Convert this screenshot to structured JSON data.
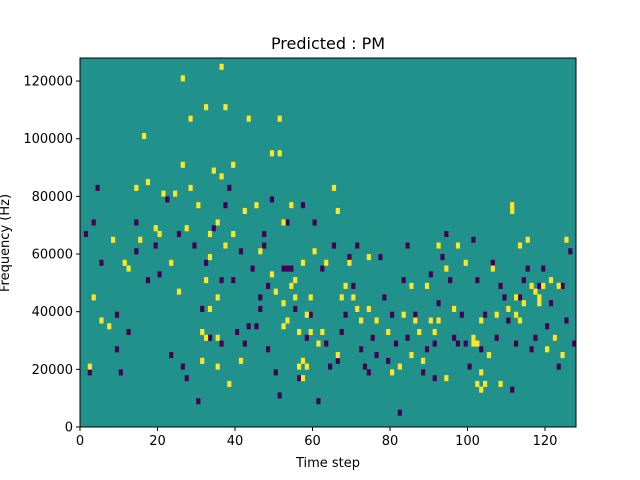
{
  "chart_data": {
    "type": "heatmap",
    "title": "Predicted : PM",
    "xlabel": "Time step",
    "ylabel": "Frequency (Hz)",
    "xlim": [
      0,
      128
    ],
    "ylim": [
      0,
      128000
    ],
    "xticks": [
      0,
      20,
      40,
      60,
      80,
      100,
      120
    ],
    "yticks": [
      0,
      20000,
      40000,
      60000,
      80000,
      100000,
      120000
    ],
    "colors": {
      "background": "#21918c",
      "low": "#440154",
      "high": "#fde725"
    },
    "values_note_legend": [],
    "high_cells": [
      [
        2,
        10
      ],
      [
        3,
        22
      ],
      [
        5,
        18
      ],
      [
        7,
        17
      ],
      [
        8,
        32
      ],
      [
        11,
        28
      ],
      [
        12,
        27
      ],
      [
        14,
        41
      ],
      [
        15,
        32
      ],
      [
        16,
        50
      ],
      [
        17,
        42
      ],
      [
        19,
        34
      ],
      [
        20,
        33
      ],
      [
        21,
        40
      ],
      [
        23,
        28
      ],
      [
        24,
        40
      ],
      [
        25,
        23
      ],
      [
        26,
        45
      ],
      [
        26,
        60
      ],
      [
        27,
        34
      ],
      [
        28,
        41
      ],
      [
        28,
        53
      ],
      [
        30,
        38
      ],
      [
        31,
        11
      ],
      [
        31,
        16
      ],
      [
        32,
        15
      ],
      [
        32,
        25
      ],
      [
        32,
        55
      ],
      [
        33,
        20
      ],
      [
        33,
        29
      ],
      [
        33,
        33
      ],
      [
        34,
        44
      ],
      [
        35,
        10
      ],
      [
        35,
        15
      ],
      [
        35,
        22
      ],
      [
        35,
        35
      ],
      [
        36,
        43
      ],
      [
        36,
        62
      ],
      [
        37,
        31
      ],
      [
        37,
        55
      ],
      [
        38,
        7
      ],
      [
        39,
        33
      ],
      [
        39,
        45
      ],
      [
        41,
        11
      ],
      [
        42,
        37
      ],
      [
        43,
        53
      ],
      [
        45,
        38
      ],
      [
        46,
        30
      ],
      [
        49,
        26
      ],
      [
        49,
        47
      ],
      [
        50,
        23
      ],
      [
        51,
        47
      ],
      [
        51,
        53
      ],
      [
        52,
        17
      ],
      [
        52,
        21
      ],
      [
        52,
        35
      ],
      [
        53,
        18
      ],
      [
        54,
        24
      ],
      [
        54,
        38
      ],
      [
        55,
        22
      ],
      [
        55,
        25
      ],
      [
        56,
        10
      ],
      [
        56,
        16
      ],
      [
        57,
        8
      ],
      [
        57,
        11
      ],
      [
        57,
        28
      ],
      [
        58,
        10
      ],
      [
        58,
        19
      ],
      [
        59,
        16
      ],
      [
        59,
        22
      ],
      [
        60,
        30
      ],
      [
        61,
        14
      ],
      [
        62,
        16
      ],
      [
        63,
        28
      ],
      [
        65,
        41
      ],
      [
        66,
        12
      ],
      [
        66,
        37
      ],
      [
        67,
        22
      ],
      [
        68,
        24
      ],
      [
        69,
        28
      ],
      [
        70,
        22
      ],
      [
        71,
        20
      ],
      [
        72,
        18
      ],
      [
        74,
        20
      ],
      [
        74,
        29
      ],
      [
        76,
        18
      ],
      [
        79,
        16
      ],
      [
        80,
        9
      ],
      [
        82,
        10
      ],
      [
        83,
        19
      ],
      [
        85,
        12
      ],
      [
        85,
        24
      ],
      [
        86,
        18
      ],
      [
        87,
        16
      ],
      [
        88,
        11
      ],
      [
        89,
        24
      ],
      [
        90,
        18
      ],
      [
        91,
        16
      ],
      [
        92,
        18
      ],
      [
        92,
        31
      ],
      [
        94,
        8
      ],
      [
        94,
        27
      ],
      [
        96,
        20
      ],
      [
        97,
        31
      ],
      [
        99,
        28
      ],
      [
        101,
        14
      ],
      [
        101,
        15
      ],
      [
        102,
        7
      ],
      [
        102,
        14
      ],
      [
        103,
        6
      ],
      [
        103,
        9
      ],
      [
        103,
        18
      ],
      [
        104,
        7
      ],
      [
        105,
        12
      ],
      [
        106,
        27
      ],
      [
        107,
        19
      ],
      [
        108,
        7
      ],
      [
        110,
        20
      ],
      [
        111,
        37
      ],
      [
        111,
        38
      ],
      [
        112,
        19
      ],
      [
        112,
        22
      ],
      [
        113,
        18
      ],
      [
        113,
        31
      ],
      [
        114,
        21
      ],
      [
        115,
        32
      ],
      [
        116,
        24
      ],
      [
        117,
        23
      ],
      [
        118,
        21
      ],
      [
        118,
        22
      ],
      [
        119,
        24
      ],
      [
        120,
        13
      ],
      [
        121,
        25
      ],
      [
        122,
        15
      ],
      [
        123,
        24
      ],
      [
        124,
        12
      ],
      [
        125,
        32
      ]
    ],
    "low_cells": [
      [
        1,
        33
      ],
      [
        2,
        9
      ],
      [
        3,
        35
      ],
      [
        4,
        41
      ],
      [
        5,
        28
      ],
      [
        9,
        13
      ],
      [
        9,
        19
      ],
      [
        10,
        9
      ],
      [
        12,
        16
      ],
      [
        14,
        30
      ],
      [
        14,
        35
      ],
      [
        17,
        25
      ],
      [
        19,
        31
      ],
      [
        20,
        26
      ],
      [
        22,
        39
      ],
      [
        23,
        12
      ],
      [
        25,
        33
      ],
      [
        26,
        10
      ],
      [
        27,
        8
      ],
      [
        29,
        31
      ],
      [
        30,
        4
      ],
      [
        31,
        20
      ],
      [
        32,
        28
      ],
      [
        33,
        15
      ],
      [
        34,
        34
      ],
      [
        36,
        14
      ],
      [
        36,
        25
      ],
      [
        37,
        38
      ],
      [
        38,
        41
      ],
      [
        39,
        25
      ],
      [
        40,
        16
      ],
      [
        41,
        30
      ],
      [
        42,
        14
      ],
      [
        43,
        17
      ],
      [
        44,
        27
      ],
      [
        45,
        17
      ],
      [
        46,
        20
      ],
      [
        46,
        22
      ],
      [
        47,
        31
      ],
      [
        47,
        33
      ],
      [
        48,
        13
      ],
      [
        48,
        24
      ],
      [
        49,
        39
      ],
      [
        50,
        9
      ],
      [
        51,
        5
      ],
      [
        52,
        27
      ],
      [
        53,
        27
      ],
      [
        53,
        35
      ],
      [
        54,
        27
      ],
      [
        55,
        20
      ],
      [
        56,
        8
      ],
      [
        57,
        38
      ],
      [
        58,
        15
      ],
      [
        59,
        19
      ],
      [
        60,
        35
      ],
      [
        61,
        4
      ],
      [
        62,
        27
      ],
      [
        63,
        14
      ],
      [
        64,
        10
      ],
      [
        65,
        31
      ],
      [
        66,
        11
      ],
      [
        67,
        16
      ],
      [
        68,
        19
      ],
      [
        69,
        29
      ],
      [
        70,
        24
      ],
      [
        71,
        31
      ],
      [
        72,
        13
      ],
      [
        73,
        10
      ],
      [
        74,
        9
      ],
      [
        75,
        15
      ],
      [
        76,
        12
      ],
      [
        77,
        29
      ],
      [
        78,
        22
      ],
      [
        79,
        11
      ],
      [
        80,
        19
      ],
      [
        81,
        14
      ],
      [
        82,
        2
      ],
      [
        83,
        25
      ],
      [
        84,
        15
      ],
      [
        84,
        31
      ],
      [
        86,
        19
      ],
      [
        88,
        9
      ],
      [
        89,
        13
      ],
      [
        90,
        26
      ],
      [
        91,
        8
      ],
      [
        91,
        14
      ],
      [
        92,
        21
      ],
      [
        93,
        29
      ],
      [
        94,
        33
      ],
      [
        95,
        25
      ],
      [
        96,
        15
      ],
      [
        97,
        14
      ],
      [
        98,
        19
      ],
      [
        99,
        14
      ],
      [
        100,
        10
      ],
      [
        101,
        32
      ],
      [
        102,
        25
      ],
      [
        103,
        13
      ],
      [
        104,
        19
      ],
      [
        106,
        28
      ],
      [
        107,
        15
      ],
      [
        108,
        24
      ],
      [
        109,
        22
      ],
      [
        110,
        18
      ],
      [
        111,
        6
      ],
      [
        112,
        14
      ],
      [
        113,
        22
      ],
      [
        114,
        25
      ],
      [
        115,
        27
      ],
      [
        116,
        13
      ],
      [
        117,
        15
      ],
      [
        118,
        24
      ],
      [
        119,
        27
      ],
      [
        120,
        17
      ],
      [
        121,
        21
      ],
      [
        122,
        15
      ],
      [
        123,
        10
      ],
      [
        124,
        24
      ],
      [
        125,
        18
      ],
      [
        126,
        30
      ],
      [
        127,
        14
      ]
    ]
  }
}
